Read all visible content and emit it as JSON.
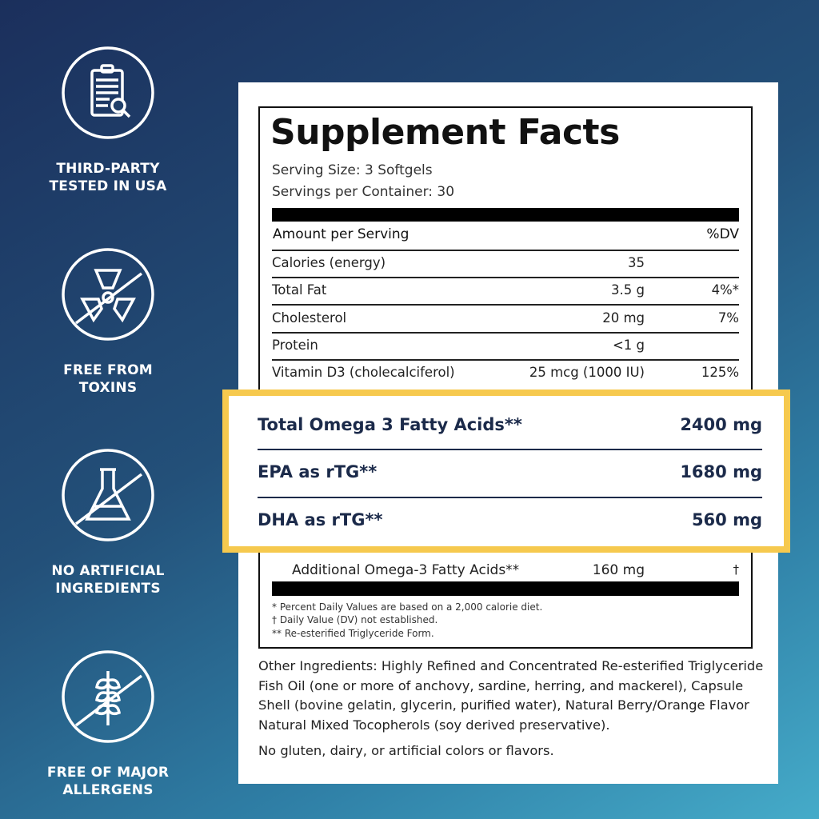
{
  "badges": [
    {
      "icon": "clipboard-search-icon",
      "label_lines": [
        "THIRD-PARTY",
        "TESTED IN USA"
      ]
    },
    {
      "icon": "no-toxins-icon",
      "label_lines": [
        "FREE FROM",
        "TOXINS"
      ]
    },
    {
      "icon": "no-artificial-flask-icon",
      "label_lines": [
        "NO ARTIFICIAL",
        "INGREDIENTS"
      ]
    },
    {
      "icon": "no-allergens-wheat-icon",
      "label_lines": [
        "FREE OF MAJOR",
        "ALLERGENS"
      ]
    }
  ],
  "facts": {
    "title": "Supplement Facts",
    "serving_size": "Serving Size: 3 Softgels",
    "servings_per_container": "Servings per Container: 30",
    "amount_header": "Amount per Serving",
    "dv_header": "%DV",
    "rows": [
      {
        "name": "Calories (energy)",
        "amount": "35",
        "dv": ""
      },
      {
        "name": "Total Fat",
        "amount": "3.5 g",
        "dv": "4%*"
      },
      {
        "name": "Cholesterol",
        "amount": "20 mg",
        "dv": "7%"
      },
      {
        "name": "Protein",
        "amount": "<1 g",
        "dv": ""
      },
      {
        "name": "Vitamin D3 (cholecalciferol)",
        "amount": "25 mcg (1000 IU)",
        "dv": "125%"
      }
    ],
    "omega": [
      {
        "name": "Total Omega 3 Fatty Acids**",
        "amount": "2400 mg"
      },
      {
        "name": "EPA as rTG**",
        "amount": "1680 mg"
      },
      {
        "name": "DHA as rTG**",
        "amount": "560 mg"
      }
    ],
    "highlight_color": "#f6c94e",
    "additional": {
      "name": "Additional Omega-3 Fatty Acids**",
      "amount": "160 mg",
      "dv": "†"
    },
    "footnotes": [
      "* Percent Daily Values are based on a 2,000 calorie diet.",
      "† Daily Value (DV) not established.",
      "** Re-esterified Triglyceride Form."
    ]
  },
  "other_ingredients": [
    "Other Ingredients: Highly Refined and Concentrated Re-esterified Triglyceride",
    "Fish Oil (one or more of anchovy, sardine, herring, and mackerel), Capsule",
    "Shell (bovine gelatin, glycerin, purified water), Natural Berry/Orange Flavor",
    "Natural Mixed Tocopherols (soy derived preservative)."
  ],
  "allergen_note": "No gluten, dairy, or artificial colors or flavors."
}
